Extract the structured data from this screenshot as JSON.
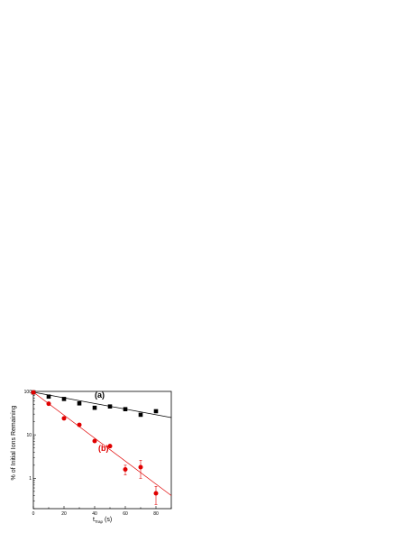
{
  "chart_data": {
    "type": "scatter",
    "title": "",
    "xlabel_main": "t",
    "xlabel_sub": "Trap",
    "xlabel_unit": "(s)",
    "ylabel": "% of Initial Ions Remaining",
    "xlim": [
      0,
      90
    ],
    "ylim": [
      0.2,
      100
    ],
    "yscale": "log",
    "xticks": [
      0,
      20,
      40,
      60,
      80
    ],
    "yticks": [
      100,
      10,
      1
    ],
    "grid": false,
    "series": [
      {
        "name": "(a)",
        "color": "#000000",
        "marker": "square",
        "x": [
          0,
          10,
          20,
          30,
          40,
          50,
          60,
          70,
          80
        ],
        "y": [
          95,
          76,
          67,
          53,
          42,
          45,
          39,
          29,
          35
        ],
        "fit": {
          "x": [
            0,
            90
          ],
          "y": [
            96,
            25
          ]
        }
      },
      {
        "name": "(b)",
        "color": "#e00000",
        "marker": "circle",
        "x": [
          0,
          10,
          20,
          30,
          40,
          50,
          60,
          70,
          80
        ],
        "y": [
          95,
          52,
          24,
          17,
          7.2,
          5.5,
          1.6,
          1.8,
          0.45
        ],
        "err": [
          0,
          0,
          0,
          0,
          0,
          0,
          0.4,
          0.8,
          0.2
        ],
        "fit": {
          "x": [
            0,
            90
          ],
          "y": [
            96,
            0.4
          ]
        }
      }
    ]
  }
}
